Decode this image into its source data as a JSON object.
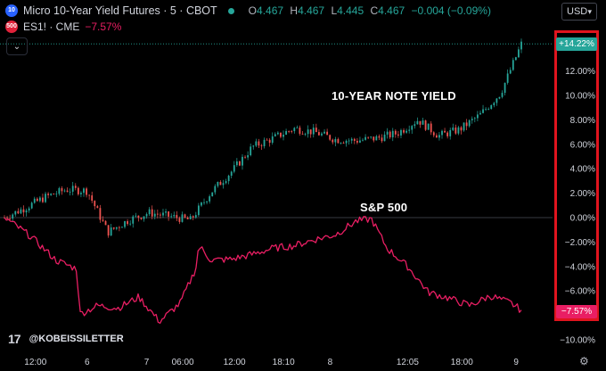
{
  "legend": {
    "main_badge": "10",
    "main_title": "Micro 10-Year Yield Futures · 5 · CBOT",
    "o_key": "O",
    "o_val": "4.467",
    "h_key": "H",
    "h_val": "4.467",
    "l_key": "L",
    "l_val": "4.445",
    "c_key": "C",
    "c_val": "4.467",
    "change": "−0.004 (−0.09%)",
    "es_badge": "500",
    "es_name": "ES1! · CME",
    "es_change": "−7.57%"
  },
  "currency": {
    "label": "USD",
    "icon": "chevron-down-icon"
  },
  "collapse_icon": "chevron-down-icon",
  "brand": {
    "logo": "17",
    "text": "@KOBEISSILETTER"
  },
  "settings_icon": "gear-icon",
  "colors": {
    "up": "#26a69a",
    "down": "#ef5350",
    "sp500": "#e91e63",
    "highlight": "#e0141e"
  },
  "chart_data": {
    "type": "line",
    "annotations": [
      "10-YEAR NOTE YIELD",
      "S&P 500"
    ],
    "ylim": [
      -10,
      16
    ],
    "y_ticks": [
      "14.00%",
      "12.00%",
      "10.00%",
      "8.00%",
      "6.00%",
      "4.00%",
      "2.00%",
      "0.00%",
      "−2.00%",
      "−4.00%",
      "−6.00%",
      "−8.00%",
      "−10.00%"
    ],
    "x_ticks": [
      "12:00",
      "6",
      "7",
      "06:00",
      "12:00",
      "18:10",
      "8",
      "12:05",
      "18:00",
      "9"
    ],
    "last_labels": {
      "ten_year": "+14.22%",
      "sp500": "−7.57%"
    },
    "series": [
      {
        "name": "Micro 10-Year Yield Futures",
        "style": "candles",
        "x": [
          0,
          4,
          8,
          12,
          16,
          20,
          24,
          28,
          32,
          36,
          40,
          44,
          48,
          52,
          56,
          60,
          64,
          68,
          72,
          76,
          80,
          84,
          88,
          92,
          96,
          100
        ],
        "values": [
          0,
          0.8,
          1.7,
          2.3,
          2.2,
          -1.2,
          -0.2,
          0.4,
          0.1,
          -0.2,
          2.1,
          3.8,
          5.8,
          6.5,
          7.3,
          7.0,
          6.4,
          6.3,
          6.5,
          6.9,
          8.0,
          6.7,
          7.2,
          8.4,
          10.2,
          14.2
        ]
      },
      {
        "name": "ES1!",
        "style": "line",
        "x": [
          0,
          5,
          10,
          14,
          14.6,
          18,
          22,
          26,
          30,
          34,
          37,
          37.6,
          40,
          44,
          48,
          52,
          56,
          60,
          64,
          68,
          71,
          74,
          78,
          82,
          86,
          90,
          94,
          98,
          100
        ],
        "values": [
          0,
          -1.5,
          -3.5,
          -4.2,
          -7.9,
          -7.2,
          -7.4,
          -6.5,
          -8.5,
          -7.0,
          -4.2,
          -2.3,
          -3.5,
          -3.4,
          -3.0,
          -2.5,
          -2.3,
          -1.8,
          -1.4,
          -0.3,
          -0.1,
          -2.5,
          -4.0,
          -6.1,
          -6.6,
          -7.2,
          -6.4,
          -7.0,
          -7.57
        ]
      }
    ]
  }
}
